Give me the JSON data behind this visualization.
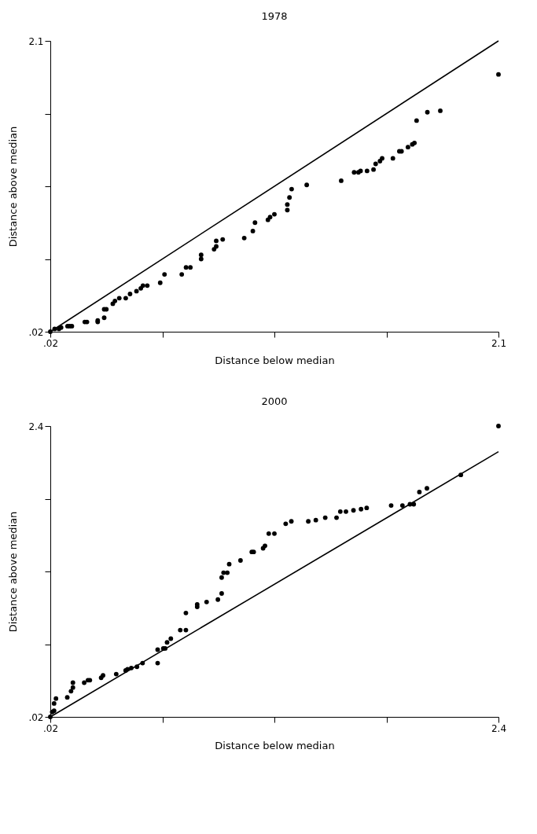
{
  "chart_data": [
    {
      "type": "scatter",
      "title": "1978",
      "xlabel": "Distance below median",
      "ylabel": "Distance above median",
      "grid": false,
      "legend": false,
      "xlim": [
        0.02,
        2.1
      ],
      "ylim": [
        0.02,
        2.1
      ],
      "xticks": [
        {
          "value": 0.02,
          "label": ".02"
        },
        {
          "value": 0.54,
          "label": null
        },
        {
          "value": 1.06,
          "label": null
        },
        {
          "value": 1.58,
          "label": null
        },
        2.1
      ],
      "yticks": [
        {
          "value": 0.02,
          "label": ".02"
        },
        {
          "value": 0.54,
          "label": null
        },
        {
          "value": 1.06,
          "label": null
        },
        {
          "value": 1.58,
          "label": null
        },
        2.1
      ],
      "series": [
        {
          "type": "scatter",
          "marker": "circle",
          "color": "#000000",
          "x": [
            0.02,
            0.04,
            0.06,
            0.07,
            0.1,
            0.11,
            0.12,
            0.18,
            0.19,
            0.24,
            0.24,
            0.27,
            0.27,
            0.28,
            0.31,
            0.32,
            0.34,
            0.37,
            0.39,
            0.42,
            0.44,
            0.45,
            0.47,
            0.53,
            0.55,
            0.63,
            0.65,
            0.67,
            0.72,
            0.72,
            0.78,
            0.79,
            0.79,
            0.82,
            0.92,
            0.96,
            0.97,
            1.03,
            1.04,
            1.06,
            1.12,
            1.12,
            1.13,
            1.14,
            1.21,
            1.37,
            1.43,
            1.45,
            1.46,
            1.49,
            1.52,
            1.53,
            1.55,
            1.56,
            1.61,
            1.64,
            1.65,
            1.68,
            1.7,
            1.71,
            1.72,
            1.77,
            1.83,
            2.1
          ],
          "values": [
            0.02,
            0.04,
            0.04,
            0.05,
            0.06,
            0.06,
            0.06,
            0.09,
            0.09,
            0.09,
            0.1,
            0.12,
            0.18,
            0.18,
            0.22,
            0.24,
            0.26,
            0.26,
            0.29,
            0.31,
            0.33,
            0.35,
            0.35,
            0.37,
            0.43,
            0.43,
            0.48,
            0.48,
            0.54,
            0.57,
            0.61,
            0.63,
            0.67,
            0.68,
            0.69,
            0.74,
            0.8,
            0.82,
            0.84,
            0.86,
            0.89,
            0.93,
            0.98,
            1.04,
            1.07,
            1.1,
            1.16,
            1.16,
            1.17,
            1.17,
            1.18,
            1.22,
            1.24,
            1.26,
            1.26,
            1.31,
            1.31,
            1.34,
            1.36,
            1.37,
            1.53,
            1.59,
            1.6,
            1.86
          ]
        },
        {
          "type": "line",
          "marker": "none",
          "color": "#000000",
          "x": [
            0.02,
            2.1
          ],
          "values": [
            0.02,
            2.1
          ]
        }
      ]
    },
    {
      "type": "scatter",
      "title": "2000",
      "xlabel": "Distance below median",
      "ylabel": "Distance above median",
      "grid": false,
      "legend": false,
      "xlim": [
        0.02,
        2.4
      ],
      "ylim": [
        0.02,
        2.4
      ],
      "xticks": [
        {
          "value": 0.02,
          "label": ".02"
        },
        {
          "value": 0.615,
          "label": null
        },
        {
          "value": 1.21,
          "label": null
        },
        {
          "value": 1.805,
          "label": null
        },
        2.4
      ],
      "yticks": [
        {
          "value": 0.02,
          "label": ".02"
        },
        {
          "value": 0.615,
          "label": null
        },
        {
          "value": 1.21,
          "label": null
        },
        {
          "value": 1.805,
          "label": null
        },
        2.4
      ],
      "series": [
        {
          "type": "scatter",
          "marker": "circle",
          "color": "#000000",
          "x": [
            0.02,
            0.03,
            0.04,
            0.04,
            0.05,
            0.11,
            0.13,
            0.14,
            0.14,
            0.2,
            0.22,
            0.23,
            0.29,
            0.3,
            0.37,
            0.42,
            0.43,
            0.45,
            0.48,
            0.51,
            0.59,
            0.59,
            0.62,
            0.63,
            0.64,
            0.66,
            0.71,
            0.74,
            0.74,
            0.8,
            0.8,
            0.85,
            0.91,
            0.93,
            0.93,
            0.94,
            0.96,
            0.97,
            1.03,
            1.09,
            1.1,
            1.15,
            1.16,
            1.18,
            1.21,
            1.27,
            1.3,
            1.39,
            1.43,
            1.48,
            1.54,
            1.56,
            1.59,
            1.63,
            1.67,
            1.7,
            1.83,
            1.89,
            1.93,
            1.95,
            1.98,
            2.02,
            2.2,
            2.4
          ],
          "values": [
            0.02,
            0.06,
            0.07,
            0.13,
            0.17,
            0.18,
            0.23,
            0.26,
            0.3,
            0.3,
            0.32,
            0.32,
            0.34,
            0.36,
            0.37,
            0.4,
            0.41,
            0.42,
            0.43,
            0.46,
            0.46,
            0.57,
            0.58,
            0.58,
            0.63,
            0.66,
            0.73,
            0.73,
            0.87,
            0.92,
            0.94,
            0.96,
            0.98,
            1.03,
            1.16,
            1.2,
            1.2,
            1.27,
            1.3,
            1.37,
            1.37,
            1.4,
            1.42,
            1.52,
            1.52,
            1.6,
            1.62,
            1.62,
            1.63,
            1.65,
            1.65,
            1.7,
            1.7,
            1.71,
            1.72,
            1.73,
            1.75,
            1.75,
            1.76,
            1.76,
            1.86,
            1.89,
            2.0,
            2.4
          ]
        },
        {
          "type": "line",
          "marker": "none",
          "color": "#000000",
          "x": [
            0.02,
            2.4
          ],
          "values": [
            0.02,
            2.19
          ]
        }
      ]
    }
  ]
}
